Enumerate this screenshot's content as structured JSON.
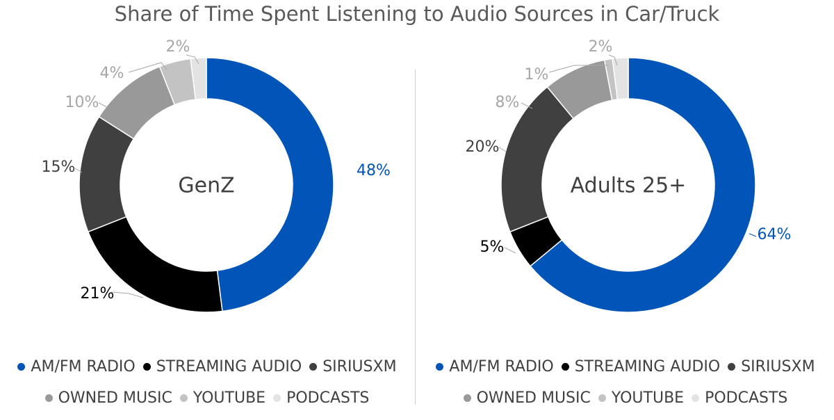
{
  "title": "Share of Time Spent Listening to Audio Sources in Car/Truck",
  "chart_data": [
    {
      "type": "pie",
      "variant": "donut",
      "title": "GenZ",
      "categories": [
        "AM/FM RADIO",
        "STREAMING AUDIO",
        "SIRIUSXM",
        "OWNED MUSIC",
        "YOUTUBE",
        "PODCASTS"
      ],
      "values": [
        48,
        21,
        15,
        10,
        4,
        2
      ],
      "labels": [
        "48%",
        "21%",
        "15%",
        "10%",
        "4%",
        "2%"
      ],
      "colors": [
        "#0255B8",
        "#000000",
        "#404040",
        "#999999",
        "#C3C3C3",
        "#E3E3E3"
      ],
      "legend": "bottom"
    },
    {
      "type": "pie",
      "variant": "donut",
      "title": "Adults 25+",
      "categories": [
        "AM/FM RADIO",
        "STREAMING AUDIO",
        "SIRIUSXM",
        "OWNED MUSIC",
        "YOUTUBE",
        "PODCASTS"
      ],
      "values": [
        64,
        5,
        20,
        8,
        1,
        2
      ],
      "labels": [
        "64%",
        "5%",
        "20%",
        "8%",
        "1%",
        "2%"
      ],
      "colors": [
        "#0255B8",
        "#000000",
        "#404040",
        "#999999",
        "#C3C3C3",
        "#E3E3E3"
      ],
      "legend": "bottom"
    }
  ],
  "legends": [
    {
      "row1": [
        {
          "label": "AM/FM RADIO",
          "color": "#0255B8"
        },
        {
          "label": "STREAMING AUDIO",
          "color": "#000000"
        },
        {
          "label": "SIRIUSXM",
          "color": "#404040"
        }
      ],
      "row2": [
        {
          "label": "OWNED MUSIC",
          "color": "#999999"
        },
        {
          "label": "YOUTUBE",
          "color": "#C3C3C3"
        },
        {
          "label": "PODCASTS",
          "color": "#E3E3E3"
        }
      ]
    },
    {
      "row1": [
        {
          "label": "AM/FM RADIO",
          "color": "#0255B8"
        },
        {
          "label": "STREAMING AUDIO",
          "color": "#000000"
        },
        {
          "label": "SIRIUSXM",
          "color": "#404040"
        }
      ],
      "row2": [
        {
          "label": "OWNED MUSIC",
          "color": "#999999"
        },
        {
          "label": "YOUTUBE",
          "color": "#C3C3C3"
        },
        {
          "label": "PODCASTS",
          "color": "#E3E3E3"
        }
      ]
    }
  ],
  "label_colors": {
    "highlight": "#0255B8",
    "default": "#404040",
    "dark": "#000000",
    "light": "#a6a6a6"
  }
}
